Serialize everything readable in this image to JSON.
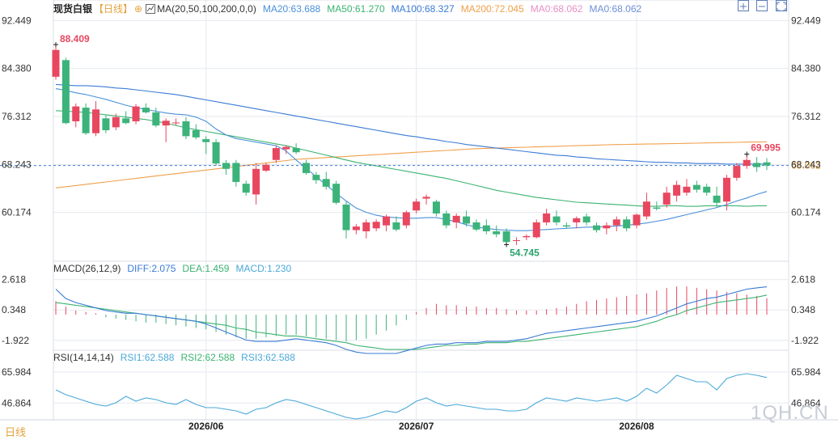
{
  "header": {
    "title": "现货白银",
    "period": "【日线】",
    "ma_label": "MA(20,50,100,200,0,0)",
    "ma_values": [
      {
        "label": "MA20:63.688",
        "color": "#4a90d9"
      },
      {
        "label": "MA50:61.270",
        "color": "#3cb371"
      },
      {
        "label": "MA100:68.327",
        "color": "#3a7bd5"
      },
      {
        "label": "MA200:72.045",
        "color": "#f0a04b"
      },
      {
        "label": "MA0:68.062",
        "color": "#e88fc8"
      },
      {
        "label": "MA0:68.062",
        "color": "#6f8fd8"
      }
    ]
  },
  "macd_header": {
    "label": "MACD(26,12,9)",
    "items": [
      {
        "label": "DIFF:2.075",
        "color": "#3a7bd5"
      },
      {
        "label": "DEA:1.459",
        "color": "#3cb371"
      },
      {
        "label": "MACD:1.230",
        "color": "#4aa8d8"
      }
    ]
  },
  "rsi_header": {
    "label": "RSI(14,14,14)",
    "items": [
      {
        "label": "RSI1:62.588",
        "color": "#4aa8d8"
      },
      {
        "label": "RSI2:62.588",
        "color": "#3cb371"
      },
      {
        "label": "RSI3:62.588",
        "color": "#4aa8d8"
      }
    ]
  },
  "period_tab": "日线",
  "watermark": "1QH.CN",
  "colors": {
    "up": "#e8475f",
    "down": "#3cb37a",
    "grid": "#e6e9ef",
    "axis_text": "#333333"
  },
  "chart_data": {
    "type": "candlestick",
    "y_ticks": [
      "92.449",
      "84.380",
      "76.312",
      "68.243",
      "60.174"
    ],
    "ylim": [
      52.1,
      94.0
    ],
    "x_ticks": [
      {
        "label": "2026/06",
        "index": 15
      },
      {
        "label": "2026/07",
        "index": 36
      },
      {
        "label": "2026/08",
        "index": 58
      }
    ],
    "annotations": {
      "high": "88.409",
      "low": "54.745",
      "last_high": "69.995",
      "last_price": "68.062"
    },
    "last_price": 68.062,
    "ohlc": [
      [
        83.0,
        88.4,
        82.5,
        87.5
      ],
      [
        85.8,
        86.2,
        75.0,
        75.2
      ],
      [
        75.5,
        78.5,
        74.5,
        78.0
      ],
      [
        77.8,
        78.5,
        73.2,
        73.5
      ],
      [
        73.5,
        78.9,
        73.0,
        77.5
      ],
      [
        76.0,
        76.5,
        73.5,
        74.0
      ],
      [
        74.5,
        76.8,
        74.0,
        76.2
      ],
      [
        76.0,
        77.2,
        75.0,
        75.2
      ],
      [
        75.5,
        78.4,
        75.0,
        78.0
      ],
      [
        77.8,
        78.5,
        76.8,
        77.0
      ],
      [
        77.0,
        77.8,
        74.5,
        74.8
      ],
      [
        74.8,
        76.0,
        72.0,
        75.6
      ],
      [
        75.2,
        76.0,
        74.8,
        75.3
      ],
      [
        75.5,
        76.2,
        72.5,
        73.0
      ],
      [
        74.0,
        75.0,
        72.5,
        72.8
      ],
      [
        72.5,
        73.0,
        70.0,
        72.0
      ],
      [
        72.0,
        72.5,
        68.0,
        68.4
      ],
      [
        68.5,
        69.0,
        66.5,
        67.5
      ],
      [
        68.5,
        69.0,
        64.5,
        65.3
      ],
      [
        65.0,
        65.5,
        63.0,
        63.5
      ],
      [
        63.2,
        68.5,
        61.5,
        67.5
      ],
      [
        67.2,
        68.5,
        67.0,
        68.2
      ],
      [
        69.0,
        71.5,
        68.5,
        71.0
      ],
      [
        70.8,
        71.5,
        70.0,
        71.2
      ],
      [
        71.0,
        71.8,
        70.0,
        70.3
      ],
      [
        68.5,
        69.0,
        66.5,
        66.8
      ],
      [
        66.5,
        67.0,
        65.0,
        65.6
      ],
      [
        65.8,
        67.0,
        64.0,
        64.5
      ],
      [
        65.0,
        65.5,
        61.5,
        61.8
      ],
      [
        61.5,
        62.0,
        55.8,
        57.2
      ],
      [
        57.2,
        58.2,
        56.5,
        57.8
      ],
      [
        57.0,
        59.0,
        55.8,
        58.5
      ],
      [
        57.5,
        59.0,
        57.0,
        58.6
      ],
      [
        58.0,
        59.8,
        57.0,
        59.5
      ],
      [
        58.5,
        59.5,
        57.0,
        57.3
      ],
      [
        58.0,
        60.5,
        57.5,
        60.2
      ],
      [
        60.5,
        62.5,
        60.0,
        62.0
      ],
      [
        62.5,
        63.2,
        61.5,
        62.8
      ],
      [
        62.0,
        62.3,
        59.5,
        60.0
      ],
      [
        60.0,
        60.5,
        57.5,
        58.0
      ],
      [
        58.5,
        60.0,
        57.5,
        59.6
      ],
      [
        59.5,
        60.5,
        57.8,
        58.3
      ],
      [
        58.5,
        59.0,
        57.0,
        57.3
      ],
      [
        58.0,
        59.0,
        56.5,
        57.0
      ],
      [
        57.0,
        58.0,
        56.0,
        56.5
      ],
      [
        57.0,
        57.5,
        54.8,
        55.2
      ],
      [
        55.5,
        56.0,
        54.7,
        55.5
      ],
      [
        56.0,
        56.5,
        55.5,
        56.2
      ],
      [
        56.0,
        59.0,
        55.8,
        58.5
      ],
      [
        58.5,
        60.8,
        58.0,
        60.0
      ],
      [
        59.5,
        60.5,
        58.0,
        58.5
      ],
      [
        58.0,
        58.5,
        57.5,
        57.8
      ],
      [
        58.5,
        59.5,
        57.5,
        59.2
      ],
      [
        59.5,
        60.0,
        58.0,
        58.5
      ],
      [
        58.0,
        58.5,
        56.8,
        57.2
      ],
      [
        57.5,
        58.5,
        56.5,
        58.0
      ],
      [
        58.0,
        59.5,
        57.0,
        59.0
      ],
      [
        59.0,
        59.5,
        57.0,
        57.5
      ],
      [
        58.0,
        60.0,
        57.5,
        59.8
      ],
      [
        59.5,
        63.5,
        59.0,
        62.0
      ],
      [
        61.0,
        62.0,
        60.5,
        60.8
      ],
      [
        61.5,
        64.5,
        61.0,
        63.5
      ],
      [
        63.0,
        65.5,
        62.0,
        64.8
      ],
      [
        63.5,
        65.8,
        63.0,
        64.5
      ],
      [
        64.8,
        65.5,
        63.5,
        64.0
      ],
      [
        64.5,
        65.0,
        63.0,
        63.5
      ],
      [
        63.0,
        64.5,
        61.0,
        61.8
      ],
      [
        62.0,
        66.5,
        60.5,
        66.0
      ],
      [
        66.0,
        68.5,
        65.5,
        68.0
      ],
      [
        68.0,
        70.0,
        67.5,
        69.0
      ],
      [
        68.5,
        69.5,
        67.0,
        67.8
      ],
      [
        68.6,
        69.3,
        67.3,
        68.06
      ]
    ],
    "ma20": [
      81.0,
      80.7,
      80.3,
      80.0,
      79.6,
      79.2,
      78.7,
      78.2,
      77.8,
      77.5,
      77.2,
      76.9,
      76.7,
      76.6,
      76.2,
      75.5,
      74.2,
      73.2,
      72.6,
      72.3,
      72.0,
      71.7,
      71.4,
      70.5,
      69.0,
      67.6,
      66.2,
      64.8,
      63.4,
      62.1,
      60.9,
      60.2,
      59.7,
      59.4,
      59.3,
      59.2,
      59.2,
      59.3,
      59.3,
      59.0,
      58.6,
      58.1,
      57.7,
      57.5,
      57.3,
      57.2,
      57.1,
      57.1,
      57.2,
      57.3,
      57.4,
      57.5,
      57.6,
      57.7,
      57.7,
      57.8,
      57.9,
      58.0,
      58.2,
      58.4,
      58.7,
      59.0,
      59.4,
      59.8,
      60.2,
      60.6,
      61.0,
      61.5,
      62.1,
      62.6,
      63.2,
      63.7
    ],
    "ma50": [
      77.3,
      77.2,
      77.1,
      77.0,
      76.8,
      76.6,
      76.4,
      76.2,
      76.0,
      75.8,
      75.5,
      75.2,
      74.8,
      74.4,
      74.1,
      73.8,
      73.5,
      73.2,
      72.9,
      72.6,
      72.3,
      72.0,
      71.7,
      71.4,
      71.0,
      70.6,
      70.2,
      69.8,
      69.4,
      69.0,
      68.6,
      68.3,
      68.0,
      67.7,
      67.4,
      67.1,
      66.8,
      66.5,
      66.2,
      65.9,
      65.5,
      65.1,
      64.7,
      64.3,
      63.9,
      63.6,
      63.3,
      63.0,
      62.7,
      62.5,
      62.3,
      62.1,
      61.9,
      61.8,
      61.7,
      61.6,
      61.5,
      61.4,
      61.3,
      61.2,
      61.2,
      61.3,
      61.3,
      61.2,
      61.2,
      61.3,
      61.3,
      61.3,
      61.3,
      61.2,
      61.3,
      61.3
    ],
    "ma100": [
      81.7,
      81.6,
      81.5,
      81.5,
      81.4,
      81.3,
      81.1,
      81.0,
      80.8,
      80.6,
      80.4,
      80.2,
      80.0,
      79.7,
      79.4,
      79.1,
      78.8,
      78.5,
      78.2,
      77.9,
      77.6,
      77.3,
      77.0,
      76.7,
      76.4,
      76.1,
      75.8,
      75.5,
      75.2,
      74.9,
      74.6,
      74.3,
      74.0,
      73.7,
      73.4,
      73.1,
      72.9,
      72.6,
      72.4,
      72.1,
      71.9,
      71.6,
      71.4,
      71.2,
      71.0,
      70.8,
      70.6,
      70.4,
      70.2,
      70.0,
      69.8,
      69.7,
      69.5,
      69.4,
      69.2,
      69.1,
      69.0,
      68.9,
      68.8,
      68.7,
      68.6,
      68.6,
      68.5,
      68.5,
      68.4,
      68.4,
      68.4,
      68.3,
      68.3,
      68.3,
      68.3,
      68.3
    ],
    "ma200": [
      64.3,
      64.5,
      64.7,
      64.9,
      65.1,
      65.3,
      65.5,
      65.7,
      65.9,
      66.1,
      66.3,
      66.5,
      66.7,
      66.9,
      67.1,
      67.3,
      67.5,
      67.7,
      67.9,
      68.1,
      68.3,
      68.5,
      68.7,
      68.9,
      69.1,
      69.2,
      69.3,
      69.4,
      69.5,
      69.6,
      69.7,
      69.8,
      69.9,
      70.0,
      70.1,
      70.2,
      70.3,
      70.4,
      70.5,
      70.6,
      70.7,
      70.8,
      70.9,
      70.95,
      71.0,
      71.05,
      71.1,
      71.15,
      71.2,
      71.25,
      71.3,
      71.35,
      71.4,
      71.45,
      71.5,
      71.55,
      71.6,
      71.62,
      71.65,
      71.68,
      71.7,
      71.73,
      71.76,
      71.8,
      71.83,
      71.86,
      71.9,
      71.93,
      71.96,
      72.0,
      72.02,
      72.045
    ],
    "macd": {
      "y_ticks": [
        "2.618",
        "0.348",
        "-1.922"
      ],
      "ylim": [
        -2.6,
        3.2
      ],
      "diff": [
        1.9,
        1.2,
        0.9,
        0.7,
        0.5,
        0.3,
        0.2,
        0.1,
        0.1,
        0.0,
        -0.1,
        -0.2,
        -0.3,
        -0.4,
        -0.5,
        -0.7,
        -1.0,
        -1.3,
        -1.6,
        -1.9,
        -2.0,
        -2.0,
        -2.0,
        -1.9,
        -1.8,
        -1.9,
        -2.0,
        -2.1,
        -2.3,
        -2.6,
        -2.8,
        -2.9,
        -2.9,
        -2.9,
        -2.9,
        -2.7,
        -2.5,
        -2.3,
        -2.2,
        -2.2,
        -2.1,
        -2.1,
        -2.1,
        -2.0,
        -2.0,
        -2.0,
        -1.9,
        -1.8,
        -1.6,
        -1.4,
        -1.3,
        -1.2,
        -1.1,
        -1.0,
        -0.9,
        -0.8,
        -0.7,
        -0.6,
        -0.5,
        -0.3,
        -0.1,
        0.2,
        0.5,
        0.8,
        1.0,
        1.2,
        1.3,
        1.5,
        1.7,
        1.9,
        2.0,
        2.075
      ],
      "dea": [
        0.9,
        0.8,
        0.7,
        0.6,
        0.5,
        0.4,
        0.3,
        0.2,
        0.1,
        0.0,
        -0.1,
        -0.2,
        -0.3,
        -0.4,
        -0.5,
        -0.6,
        -0.7,
        -0.8,
        -1.0,
        -1.1,
        -1.3,
        -1.4,
        -1.5,
        -1.6,
        -1.6,
        -1.7,
        -1.8,
        -1.9,
        -2.0,
        -2.1,
        -2.3,
        -2.4,
        -2.5,
        -2.6,
        -2.6,
        -2.6,
        -2.6,
        -2.5,
        -2.4,
        -2.3,
        -2.3,
        -2.2,
        -2.2,
        -2.1,
        -2.1,
        -2.1,
        -2.0,
        -2.0,
        -1.9,
        -1.8,
        -1.7,
        -1.6,
        -1.5,
        -1.4,
        -1.3,
        -1.2,
        -1.1,
        -1.0,
        -0.9,
        -0.7,
        -0.5,
        -0.2,
        0.0,
        0.3,
        0.5,
        0.7,
        0.9,
        1.0,
        1.1,
        1.2,
        1.3,
        1.459
      ],
      "hist": [
        1.0,
        0.6,
        0.3,
        0.2,
        0.1,
        -0.2,
        -0.3,
        -0.4,
        -0.5,
        -0.6,
        -0.6,
        -0.7,
        -0.8,
        -0.9,
        -1.0,
        -1.1,
        -1.3,
        -1.5,
        -1.7,
        -1.8,
        -1.8,
        -1.7,
        -1.6,
        -1.5,
        -1.5,
        -1.6,
        -1.7,
        -1.8,
        -1.9,
        -2.0,
        -1.9,
        -1.8,
        -1.5,
        -1.2,
        -0.8,
        -0.4,
        0.2,
        0.5,
        0.8,
        0.7,
        0.7,
        0.6,
        0.6,
        0.5,
        0.5,
        0.4,
        0.3,
        0.3,
        0.3,
        0.4,
        0.5,
        0.6,
        0.8,
        1.0,
        1.1,
        1.2,
        1.3,
        1.4,
        1.5,
        1.6,
        1.8,
        2.0,
        2.1,
        2.1,
        2.0,
        1.9,
        1.8,
        1.7,
        1.6,
        1.5,
        1.4,
        1.23
      ]
    },
    "rsi": {
      "y_ticks": [
        "65.984",
        "46.864"
      ],
      "ylim": [
        37.0,
        73.0
      ],
      "rsi1": [
        55,
        52,
        50,
        48,
        46,
        45,
        47,
        51,
        48,
        50,
        49,
        47,
        46,
        49,
        46,
        44,
        44,
        43,
        42,
        40,
        43,
        44,
        47,
        49,
        48,
        46,
        44,
        42,
        40,
        38,
        37,
        38,
        40,
        42,
        41,
        44,
        48,
        50,
        47,
        45,
        46,
        45,
        44,
        43,
        43,
        42,
        42,
        43,
        47,
        50,
        49,
        48,
        50,
        49,
        48,
        49,
        50,
        48,
        51,
        56,
        53,
        58,
        64,
        62,
        60,
        60,
        55,
        62,
        64,
        65,
        64,
        62.588
      ]
    }
  }
}
